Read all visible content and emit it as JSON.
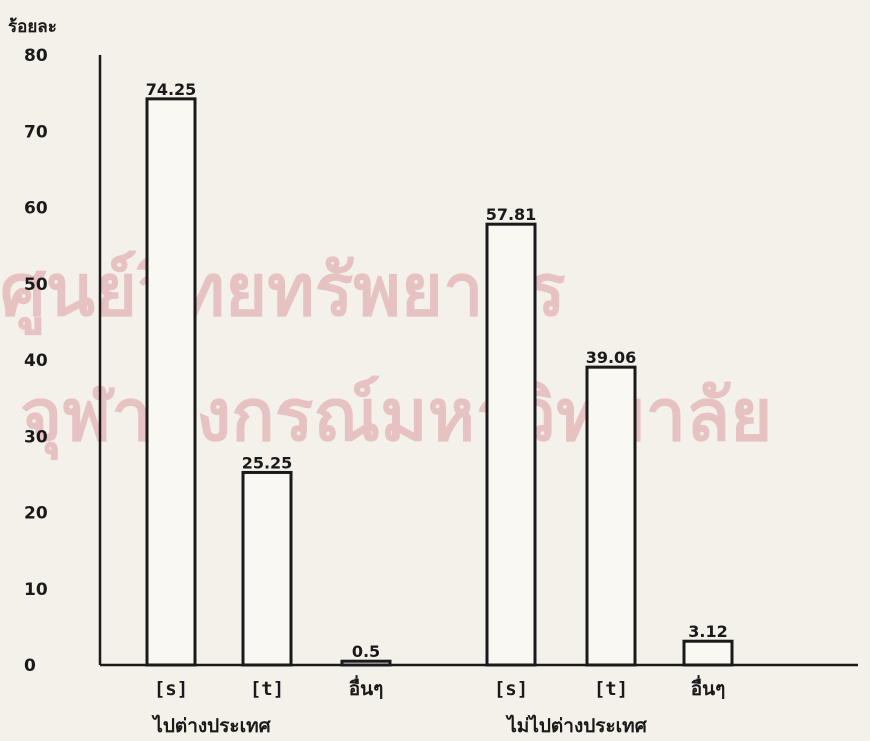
{
  "chart_data": {
    "type": "bar",
    "ylabel": "ร้อยละ",
    "ylim": [
      0,
      80
    ],
    "yticks": [
      0,
      10,
      20,
      30,
      40,
      50,
      60,
      70,
      80
    ],
    "categories": [
      "[s]",
      "[t]",
      "อื่นๆ",
      "[s]",
      "[t]",
      "อื่นๆ"
    ],
    "groups": [
      {
        "name": "ไปต่างประเทศ",
        "categories": [
          "[s]",
          "[t]",
          "อื่นๆ"
        ],
        "values": [
          74.25,
          25.25,
          0.5
        ]
      },
      {
        "name": "ไม่ไปต่างประเทศ",
        "categories": [
          "[s]",
          "[t]",
          "อื่นๆ"
        ],
        "values": [
          57.81,
          39.06,
          3.12
        ]
      }
    ],
    "value_labels": [
      "74.25",
      "25.25",
      "0.5",
      "57.81",
      "39.06",
      "3.12"
    ],
    "grid": false,
    "legend": "none"
  },
  "watermark": {
    "line1": "ศูนย์วิทยทรัพยากร",
    "line2": "จุฬาลงกรณ์มหาวิทยาลัย",
    "color": "#e6c2c2"
  },
  "colors": {
    "background": "#f4f1ea",
    "ink": "#1a1a1a",
    "bar_fill": "#faf8f3"
  }
}
